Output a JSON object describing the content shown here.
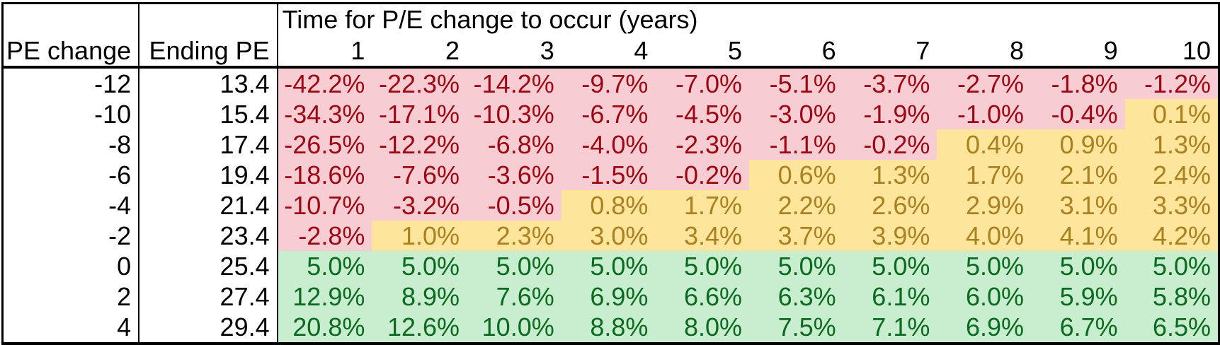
{
  "table": {
    "span_header": "Time for P/E change to occur (years)",
    "col1_header": "PE change",
    "col2_header": "Ending PE"
  },
  "colors": {
    "bad_fill": "#F8CCD3",
    "bad_text": "#9C0713",
    "mid_fill": "#FDE59C",
    "mid_text": "#AB8021",
    "good_fill": "#C9EDCF",
    "good_text": "#0A6A1F",
    "border": "#000000",
    "bg": "#FFFFFF"
  },
  "chart_data": {
    "type": "heatmap",
    "title": "Time for P/E change to occur (years)",
    "row_header_1": "PE change",
    "row_header_2": "Ending PE",
    "columns": [
      1,
      2,
      3,
      4,
      5,
      6,
      7,
      8,
      9,
      10
    ],
    "value_format": "percent_one_decimal",
    "color_rules": {
      "negative_values": "red",
      "zero_to_below_target": "yellow",
      "at_or_above_target": "green",
      "target_value": 5.0
    },
    "rows": [
      {
        "pe_change": -12,
        "ending_pe": 13.4,
        "values": [
          -42.2,
          -22.3,
          -14.2,
          -9.7,
          -7.0,
          -5.1,
          -3.7,
          -2.7,
          -1.8,
          -1.2
        ]
      },
      {
        "pe_change": -10,
        "ending_pe": 15.4,
        "values": [
          -34.3,
          -17.1,
          -10.3,
          -6.7,
          -4.5,
          -3.0,
          -1.9,
          -1.0,
          -0.4,
          0.1
        ]
      },
      {
        "pe_change": -8,
        "ending_pe": 17.4,
        "values": [
          -26.5,
          -12.2,
          -6.8,
          -4.0,
          -2.3,
          -1.1,
          -0.2,
          0.4,
          0.9,
          1.3
        ]
      },
      {
        "pe_change": -6,
        "ending_pe": 19.4,
        "values": [
          -18.6,
          -7.6,
          -3.6,
          -1.5,
          -0.2,
          0.6,
          1.3,
          1.7,
          2.1,
          2.4
        ]
      },
      {
        "pe_change": -4,
        "ending_pe": 21.4,
        "values": [
          -10.7,
          -3.2,
          -0.5,
          0.8,
          1.7,
          2.2,
          2.6,
          2.9,
          3.1,
          3.3
        ]
      },
      {
        "pe_change": -2,
        "ending_pe": 23.4,
        "values": [
          -2.8,
          1.0,
          2.3,
          3.0,
          3.4,
          3.7,
          3.9,
          4.0,
          4.1,
          4.2
        ]
      },
      {
        "pe_change": 0,
        "ending_pe": 25.4,
        "values": [
          5.0,
          5.0,
          5.0,
          5.0,
          5.0,
          5.0,
          5.0,
          5.0,
          5.0,
          5.0
        ]
      },
      {
        "pe_change": 2,
        "ending_pe": 27.4,
        "values": [
          12.9,
          8.9,
          7.6,
          6.9,
          6.6,
          6.3,
          6.1,
          6.0,
          5.9,
          5.8
        ]
      },
      {
        "pe_change": 4,
        "ending_pe": 29.4,
        "values": [
          20.8,
          12.6,
          10.0,
          8.8,
          8.0,
          7.5,
          7.1,
          6.9,
          6.7,
          6.5
        ]
      }
    ]
  }
}
